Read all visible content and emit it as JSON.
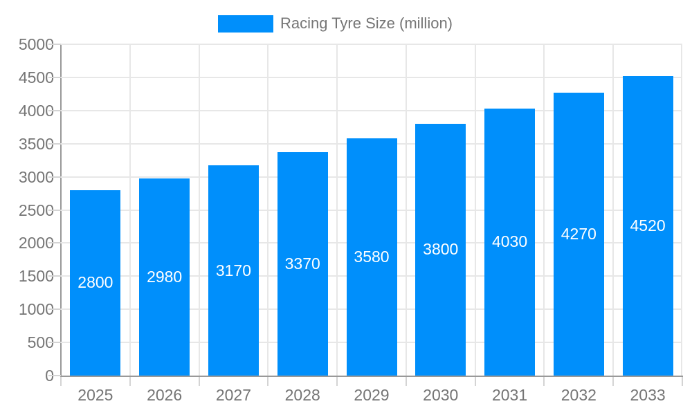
{
  "legend": {
    "label": "Racing Tyre Size (million)",
    "swatch_color": "#008FFB"
  },
  "chart_data": {
    "type": "bar",
    "title": "Racing Tyre Size (million)",
    "legend_position": "top",
    "categories": [
      "2025",
      "2026",
      "2027",
      "2028",
      "2029",
      "2030",
      "2031",
      "2032",
      "2033"
    ],
    "series": [
      {
        "name": "Racing Tyre Size (million)",
        "values": [
          2800,
          2980,
          3170,
          3370,
          3580,
          3800,
          4030,
          4270,
          4520
        ],
        "color": "#008FFB"
      }
    ],
    "value_labels": [
      "2800",
      "2980",
      "3170",
      "3370",
      "3580",
      "3800",
      "4030",
      "4270",
      "4520"
    ],
    "xlabel": "",
    "ylabel": "",
    "ylim": [
      0,
      5000
    ],
    "ytick_step": 500,
    "ytick_labels": [
      "0",
      "500",
      "1000",
      "1500",
      "2000",
      "2500",
      "3000",
      "3500",
      "4000",
      "4500",
      "5000"
    ],
    "grid": true,
    "colors": {
      "bar": "#008FFB",
      "value_label": "#FFFFFF",
      "axis_text": "#757575",
      "gridline": "#E7E7E7",
      "axis_line": "#999999",
      "tick": "#D4D4D4",
      "background": "#FFFFFF"
    }
  }
}
